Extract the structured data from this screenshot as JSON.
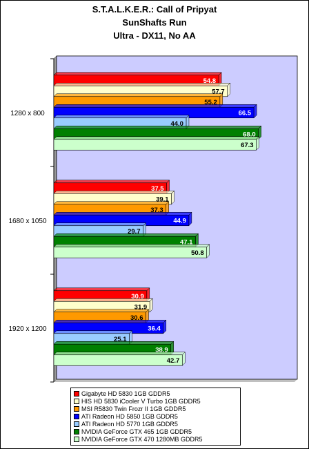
{
  "chart_data": {
    "type": "bar",
    "orientation": "horizontal",
    "title": [
      "S.T.A.L.K.E.R.: Call of Pripyat",
      "SunShafts Run",
      "Ultra - DX11, No AA"
    ],
    "categories": [
      "1280 x 800",
      "1680 x 1050",
      "1920 x 1200"
    ],
    "xlim": [
      0,
      80
    ],
    "grid": false,
    "legend_position": "bottom",
    "series": [
      {
        "name": "Gigabyte HD 5830 1GB GDDR5",
        "color": "#ff0000",
        "label_color": "#ffffff",
        "values": [
          54.8,
          37.5,
          30.9
        ]
      },
      {
        "name": "HIS HD 5830 iCooler V Turbo 1GB GDDR5",
        "color": "#ffffcc",
        "label_color": "#000000",
        "values": [
          57.7,
          39.1,
          31.9
        ]
      },
      {
        "name": "MSI R5830 Twin Frozr II 1GB GDDR5",
        "color": "#ff9900",
        "label_color": "#000000",
        "values": [
          55.2,
          37.3,
          30.6
        ]
      },
      {
        "name": "ATI Radeon HD 5850 1GB GDDR5",
        "color": "#0000ff",
        "label_color": "#ffffff",
        "values": [
          66.5,
          44.9,
          36.4
        ]
      },
      {
        "name": "ATI Radeon HD 5770 1GB GDDR5",
        "color": "#99ccff",
        "label_color": "#000000",
        "values": [
          44.0,
          29.7,
          25.1
        ]
      },
      {
        "name": "NVIDIA GeForce GTX 465 1GB GDDR5",
        "color": "#008000",
        "label_color": "#ffffff",
        "values": [
          68.0,
          47.1,
          38.9
        ]
      },
      {
        "name": "NVIDIA GeForce GTX 470 1280MB GDDR5",
        "color": "#ccffcc",
        "label_color": "#000000",
        "values": [
          67.3,
          50.8,
          42.7
        ]
      }
    ],
    "plot_background": "#ccccff"
  }
}
